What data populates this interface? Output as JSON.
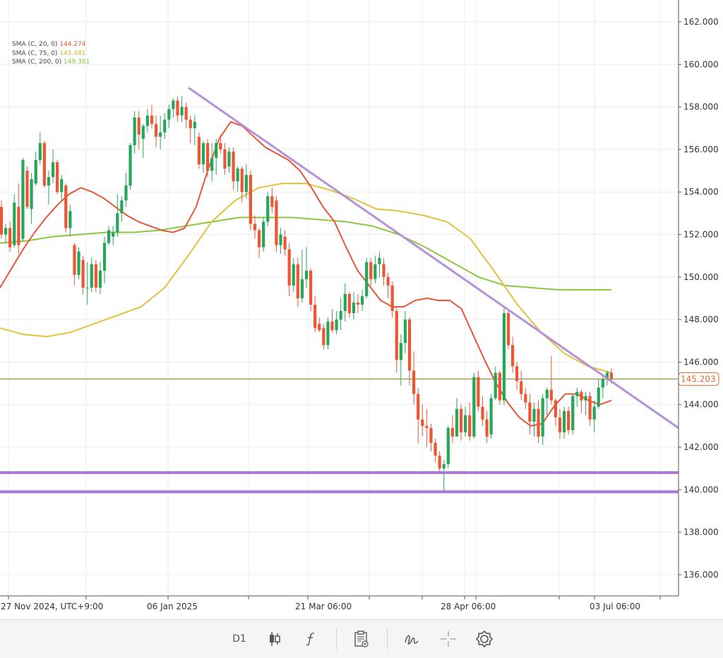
{
  "chart_data": {
    "type": "candlestick",
    "timeframe_label": "D1",
    "y_axis": {
      "ylim": [
        135,
        163.5
      ],
      "ticks": [
        "136.000",
        "138.000",
        "140.000",
        "142.000",
        "144.000",
        "146.000",
        "148.000",
        "150.000",
        "152.000",
        "154.000",
        "156.000",
        "158.000",
        "160.000",
        "162.000"
      ]
    },
    "x_axis": {
      "tick_labels": [
        "27 Nov 2024, UTC+9:00",
        "06 Jan 2025",
        "21 Mar 06:00",
        "28 Apr 06:00",
        "03 Jul 06:00"
      ]
    },
    "current_price": {
      "value": 145.203,
      "label": "145.203",
      "color": "#e06a2c"
    },
    "indicators": [
      {
        "name": "SMA (C, 20, 0)",
        "value": "144.274",
        "color": "#e8553a"
      },
      {
        "name": "SMA (C, 75, 0)",
        "value": "145.481",
        "color": "#e2c23e"
      },
      {
        "name": "SMA (C, 200, 0)",
        "value": "149.381",
        "color": "#8cc63f"
      }
    ],
    "candles_ohlc": [
      [
        153.3,
        153.6,
        151.8,
        152.0
      ],
      [
        152.0,
        152.5,
        151.6,
        152.3
      ],
      [
        152.3,
        152.6,
        151.2,
        151.4
      ],
      [
        151.5,
        153.9,
        151.4,
        153.5
      ],
      [
        153.3,
        154.4,
        151.1,
        151.5
      ],
      [
        151.8,
        155.6,
        151.7,
        155.5
      ],
      [
        155.0,
        155.2,
        153.2,
        153.3
      ],
      [
        153.2,
        154.9,
        152.5,
        154.6
      ],
      [
        154.4,
        155.9,
        154.3,
        155.5
      ],
      [
        155.5,
        156.8,
        155.3,
        156.3
      ],
      [
        156.3,
        156.4,
        154.2,
        154.3
      ],
      [
        154.3,
        155.0,
        153.4,
        154.7
      ],
      [
        154.7,
        156.0,
        154.4,
        155.4
      ],
      [
        155.4,
        155.5,
        153.9,
        154.0
      ],
      [
        154.0,
        154.8,
        153.6,
        154.6
      ],
      [
        154.3,
        154.4,
        152.1,
        152.3
      ],
      [
        152.3,
        153.4,
        151.9,
        153.1
      ],
      [
        151.5,
        151.6,
        149.6,
        150.1
      ],
      [
        150.1,
        151.4,
        149.9,
        151.2
      ],
      [
        150.8,
        151.0,
        149.2,
        149.5
      ],
      [
        149.5,
        150.7,
        148.7,
        149.5
      ],
      [
        149.5,
        150.9,
        149.3,
        150.6
      ],
      [
        150.6,
        150.8,
        149.3,
        149.5
      ],
      [
        149.5,
        150.7,
        149.2,
        150.3
      ],
      [
        150.3,
        151.9,
        149.7,
        151.6
      ],
      [
        151.6,
        152.4,
        151.5,
        152.2
      ],
      [
        151.9,
        152.4,
        151.5,
        152.1
      ],
      [
        152.1,
        153.9,
        151.9,
        153.0
      ],
      [
        153.0,
        153.8,
        152.6,
        153.6
      ],
      [
        153.6,
        154.9,
        153.3,
        154.3
      ],
      [
        154.3,
        156.3,
        154.1,
        156.2
      ],
      [
        156.2,
        157.8,
        155.8,
        157.5
      ],
      [
        157.5,
        157.8,
        156.0,
        156.7
      ],
      [
        156.5,
        157.2,
        155.6,
        157.1
      ],
      [
        157.1,
        157.9,
        156.8,
        157.6
      ],
      [
        157.6,
        158.1,
        157.0,
        157.2
      ],
      [
        157.2,
        157.6,
        156.1,
        156.6
      ],
      [
        156.6,
        157.6,
        156.0,
        156.8
      ],
      [
        156.8,
        157.7,
        156.5,
        157.4
      ],
      [
        157.4,
        158.1,
        157.0,
        157.9
      ],
      [
        157.9,
        158.4,
        157.5,
        158.3
      ],
      [
        158.3,
        158.5,
        157.3,
        157.6
      ],
      [
        157.6,
        158.5,
        157.3,
        158.0
      ],
      [
        158.0,
        158.2,
        157.0,
        157.4
      ],
      [
        157.4,
        157.6,
        156.3,
        157.0
      ],
      [
        157.0,
        157.6,
        156.2,
        157.3
      ],
      [
        156.6,
        156.8,
        155.1,
        155.3
      ],
      [
        155.3,
        156.4,
        154.9,
        156.3
      ],
      [
        156.3,
        156.5,
        154.7,
        155.0
      ],
      [
        155.0,
        156.3,
        154.5,
        155.6
      ],
      [
        155.6,
        156.5,
        154.8,
        156.3
      ],
      [
        156.3,
        156.7,
        155.8,
        156.0
      ],
      [
        156.0,
        156.3,
        154.8,
        155.1
      ],
      [
        155.2,
        156.1,
        154.9,
        155.9
      ],
      [
        155.9,
        156.1,
        154.1,
        154.5
      ],
      [
        154.5,
        155.2,
        154.0,
        155.1
      ],
      [
        155.1,
        155.2,
        153.5,
        154.0
      ],
      [
        154.0,
        155.3,
        153.7,
        154.8
      ],
      [
        154.8,
        155.0,
        152.2,
        152.5
      ],
      [
        152.5,
        152.9,
        151.8,
        152.2
      ],
      [
        152.2,
        152.3,
        150.9,
        151.4
      ],
      [
        151.4,
        152.8,
        151.2,
        152.6
      ],
      [
        152.6,
        154.0,
        152.4,
        153.8
      ],
      [
        153.8,
        154.2,
        153.0,
        153.3
      ],
      [
        153.6,
        153.8,
        151.2,
        151.5
      ],
      [
        151.5,
        152.3,
        151.1,
        152.0
      ],
      [
        151.9,
        152.2,
        151.0,
        151.3
      ],
      [
        151.3,
        151.6,
        149.1,
        149.6
      ],
      [
        149.6,
        150.9,
        149.3,
        150.6
      ],
      [
        150.6,
        150.9,
        148.6,
        149.0
      ],
      [
        149.0,
        151.3,
        148.8,
        149.9
      ],
      [
        149.9,
        151.4,
        149.5,
        150.3
      ],
      [
        150.3,
        150.4,
        148.4,
        148.7
      ],
      [
        148.7,
        149.1,
        147.4,
        147.6
      ],
      [
        147.8,
        148.1,
        147.4,
        147.5
      ],
      [
        147.6,
        147.8,
        146.6,
        146.8
      ],
      [
        146.8,
        148.1,
        146.6,
        147.9
      ],
      [
        147.9,
        148.5,
        147.4,
        147.5
      ],
      [
        147.5,
        148.4,
        147.3,
        148.0
      ],
      [
        148.0,
        149.0,
        147.5,
        148.4
      ],
      [
        148.4,
        149.7,
        147.9,
        149.2
      ],
      [
        149.2,
        149.3,
        148.1,
        148.3
      ],
      [
        148.3,
        149.3,
        148.0,
        148.8
      ],
      [
        148.8,
        149.2,
        148.3,
        148.7
      ],
      [
        148.7,
        149.4,
        148.4,
        149.1
      ],
      [
        149.1,
        150.9,
        149.0,
        150.7
      ],
      [
        150.7,
        150.9,
        149.6,
        149.9
      ],
      [
        149.9,
        151.0,
        149.7,
        150.6
      ],
      [
        150.6,
        151.2,
        150.0,
        150.9
      ],
      [
        150.6,
        150.9,
        149.6,
        150.0
      ],
      [
        150.0,
        150.2,
        149.0,
        149.6
      ],
      [
        149.6,
        149.8,
        148.1,
        148.4
      ],
      [
        148.4,
        148.6,
        145.5,
        146.1
      ],
      [
        146.1,
        147.3,
        144.9,
        146.9
      ],
      [
        146.9,
        148.4,
        146.4,
        148.0
      ],
      [
        148.0,
        148.1,
        144.9,
        145.6
      ],
      [
        145.6,
        146.5,
        144.0,
        144.5
      ],
      [
        144.5,
        144.8,
        142.2,
        143.3
      ],
      [
        143.3,
        144.0,
        142.5,
        143.0
      ],
      [
        143.0,
        143.8,
        142.0,
        142.9
      ],
      [
        142.9,
        143.1,
        141.8,
        142.2
      ],
      [
        142.2,
        142.4,
        141.3,
        141.6
      ],
      [
        141.6,
        141.8,
        140.8,
        141.0
      ],
      [
        141.0,
        141.4,
        139.9,
        141.2
      ],
      [
        141.2,
        143.0,
        141.0,
        142.9
      ],
      [
        142.9,
        143.5,
        142.2,
        142.5
      ],
      [
        142.5,
        144.3,
        142.5,
        143.8
      ],
      [
        143.8,
        144.0,
        142.3,
        142.7
      ],
      [
        142.7,
        143.9,
        142.5,
        143.5
      ],
      [
        143.5,
        144.1,
        142.3,
        142.5
      ],
      [
        142.5,
        145.5,
        142.4,
        145.3
      ],
      [
        145.3,
        145.6,
        143.7,
        143.9
      ],
      [
        143.9,
        144.4,
        143.0,
        143.3
      ],
      [
        143.3,
        143.7,
        142.2,
        142.5
      ],
      [
        142.6,
        144.5,
        142.4,
        144.3
      ],
      [
        144.3,
        145.8,
        144.2,
        145.5
      ],
      [
        145.5,
        145.6,
        144.0,
        144.2
      ],
      [
        144.2,
        148.6,
        144.0,
        148.3
      ],
      [
        148.3,
        148.5,
        146.6,
        146.8
      ],
      [
        146.8,
        147.2,
        145.5,
        145.8
      ],
      [
        145.8,
        146.0,
        144.7,
        145.1
      ],
      [
        145.1,
        145.6,
        144.2,
        144.5
      ],
      [
        144.5,
        144.8,
        143.8,
        144.1
      ],
      [
        144.1,
        144.5,
        142.6,
        143.2
      ],
      [
        143.2,
        144.1,
        142.5,
        143.8
      ],
      [
        143.8,
        144.2,
        142.2,
        142.5
      ],
      [
        142.5,
        144.5,
        142.1,
        144.3
      ],
      [
        144.3,
        144.8,
        143.5,
        144.7
      ],
      [
        144.7,
        146.3,
        144.0,
        144.2
      ],
      [
        144.2,
        144.3,
        143.0,
        143.4
      ],
      [
        143.4,
        143.8,
        142.4,
        142.7
      ],
      [
        142.7,
        143.9,
        142.4,
        143.7
      ],
      [
        143.7,
        143.9,
        142.6,
        142.8
      ],
      [
        142.8,
        144.5,
        142.6,
        144.4
      ],
      [
        144.4,
        144.8,
        143.9,
        144.6
      ],
      [
        144.6,
        144.7,
        143.6,
        144.2
      ],
      [
        144.2,
        144.6,
        143.5,
        144.4
      ],
      [
        144.4,
        144.6,
        143.0,
        143.3
      ],
      [
        143.3,
        144.2,
        142.7,
        143.9
      ],
      [
        143.9,
        145.2,
        143.8,
        144.8
      ],
      [
        144.8,
        145.4,
        144.3,
        145.2
      ],
      [
        145.2,
        145.6,
        144.9,
        145.5
      ],
      [
        145.5,
        145.7,
        145.0,
        145.2
      ]
    ],
    "sma20": [
      149.5,
      150.4,
      151.3,
      152.1,
      152.8,
      153.4,
      153.9,
      154.2,
      154.0,
      153.7,
      153.3,
      152.9,
      152.6,
      152.4,
      152.2,
      152.1,
      152.3,
      153.3,
      155.0,
      156.5,
      157.3,
      157.1,
      156.6,
      156.1,
      155.8,
      155.5,
      155.0,
      154.2,
      153.3,
      152.6,
      151.4,
      150.3,
      149.6,
      148.9,
      148.6,
      148.6,
      148.9,
      149.0,
      148.9,
      148.9,
      148.5,
      147.3,
      146.1,
      145.0,
      144.1,
      143.4,
      143.0,
      143.1,
      143.9,
      144.5,
      144.5,
      144.2,
      144.0,
      144.2
    ],
    "sma75": [
      147.6,
      147.3,
      147.2,
      147.4,
      147.8,
      148.2,
      148.6,
      149.5,
      151.0,
      152.6,
      153.6,
      154.2,
      154.4,
      154.4,
      154.1,
      153.7,
      153.2,
      153.1,
      152.9,
      152.6,
      151.8,
      150.3,
      148.7,
      147.4,
      146.4,
      145.8,
      145.5
    ],
    "sma200": [
      151.6,
      151.7,
      151.9,
      152.0,
      152.1,
      152.1,
      152.2,
      152.4,
      152.6,
      152.8,
      152.8,
      152.8,
      152.7,
      152.6,
      152.4,
      152.0,
      151.4,
      150.7,
      150.0,
      149.6,
      149.5,
      149.4,
      149.4,
      149.4
    ],
    "trendline": {
      "from_price": 158.9,
      "to_price": 142.9,
      "color": "#b592d8"
    },
    "support_levels": [
      {
        "value": 140.8,
        "color": "#a678d4"
      },
      {
        "value": 139.9,
        "color": "#a678d4"
      }
    ],
    "colors": {
      "up": "#26a65b",
      "down": "#ee5533",
      "grid": "#ececec",
      "axis_text": "#333333"
    }
  },
  "toolbar": {
    "timeframe": "D1",
    "icons": [
      "candles-icon",
      "function-icon",
      "template-icon",
      "drawing-icon",
      "crosshair-icon",
      "settings-icon"
    ]
  }
}
